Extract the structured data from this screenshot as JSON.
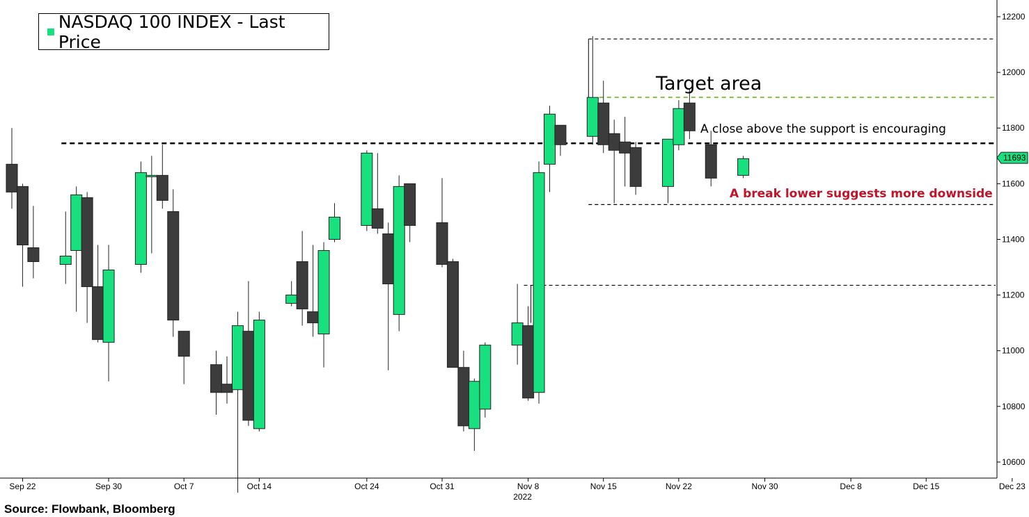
{
  "legend": {
    "label": "NASDAQ 100 INDEX - Last Price",
    "color": "#19e07e"
  },
  "source": "Source: Flowbank, Bloomberg",
  "annotations": {
    "target": "Target area",
    "close_above": "A close above the support is encouraging",
    "break_lower": "A break lower suggests more downside"
  },
  "colors": {
    "up": "#19e07e",
    "down": "#3c3c3c",
    "target_line": "#7dc242",
    "break_text": "#c0142a"
  },
  "chart_data": {
    "type": "candlestick",
    "title": "NASDAQ 100 INDEX - Last Price",
    "ylim": [
      10450,
      12240
    ],
    "yticks": [
      10600,
      10800,
      11000,
      11200,
      11400,
      11600,
      11800,
      12000,
      12200
    ],
    "x_range": [
      "Sep 21",
      "Dec 27"
    ],
    "xticks": [
      "Sep 22",
      "Sep 30",
      "Oct 7",
      "Oct 14",
      "Oct 24",
      "Oct 31",
      "Nov 8",
      "Nov 15",
      "Nov 22",
      "Nov 30",
      "Dec 8",
      "Dec 15",
      "Dec 23"
    ],
    "year_label": "2022",
    "last_price": 11693,
    "levels": [
      {
        "name": "upper",
        "value": 12120,
        "style": "dashed-black",
        "from": "Nov 14"
      },
      {
        "name": "target",
        "value": 11910,
        "style": "dashed-green",
        "from": "Nov 15"
      },
      {
        "name": "support",
        "value": 11745,
        "style": "dashed-black-bold",
        "from": "Sep 26"
      },
      {
        "name": "lower",
        "value": 11525,
        "style": "dashed-black",
        "from": "Nov 14"
      },
      {
        "name": "mid",
        "value": 11235,
        "style": "dashed-black",
        "from": "Nov 8"
      }
    ],
    "candles": [
      {
        "date": "Sep 21",
        "open": 11670,
        "high": 11800,
        "low": 11510,
        "close": 11570
      },
      {
        "date": "Sep 22",
        "open": 11590,
        "high": 11600,
        "low": 11230,
        "close": 11380
      },
      {
        "date": "Sep 23",
        "open": 11370,
        "high": 11520,
        "low": 11260,
        "close": 11320
      },
      {
        "date": "Sep 26",
        "open": 11310,
        "high": 11500,
        "low": 11240,
        "close": 11340
      },
      {
        "date": "Sep 27",
        "open": 11360,
        "high": 11590,
        "low": 11140,
        "close": 11560
      },
      {
        "date": "Sep 28",
        "open": 11550,
        "high": 11570,
        "low": 11100,
        "close": 11230
      },
      {
        "date": "Sep 29",
        "open": 11230,
        "high": 11380,
        "low": 11030,
        "close": 11040
      },
      {
        "date": "Sep 30",
        "open": 11030,
        "high": 11380,
        "low": 10890,
        "close": 11290
      },
      {
        "date": "Oct 3",
        "open": 11310,
        "high": 11680,
        "low": 11280,
        "close": 11640
      },
      {
        "date": "Oct 4",
        "open": 11630,
        "high": 11700,
        "low": 11350,
        "close": 11630
      },
      {
        "date": "Oct 5",
        "open": 11630,
        "high": 11740,
        "low": 11510,
        "close": 11540
      },
      {
        "date": "Oct 6",
        "open": 11500,
        "high": 11580,
        "low": 11050,
        "close": 11110
      },
      {
        "date": "Oct 7",
        "open": 11070,
        "high": 11070,
        "low": 10880,
        "close": 10980
      },
      {
        "date": "Oct 10",
        "open": 10950,
        "high": 11000,
        "low": 10770,
        "close": 10850
      },
      {
        "date": "Oct 11",
        "open": 10880,
        "high": 10980,
        "low": 10810,
        "close": 10850
      },
      {
        "date": "Oct 12",
        "open": 10860,
        "high": 11140,
        "low": 10490,
        "close": 11090
      },
      {
        "date": "Oct 13",
        "open": 11070,
        "high": 11250,
        "low": 10730,
        "close": 10750
      },
      {
        "date": "Oct 14",
        "open": 10720,
        "high": 11140,
        "low": 10710,
        "close": 11110
      },
      {
        "date": "Oct 17",
        "open": 11170,
        "high": 11250,
        "low": 11160,
        "close": 11200
      },
      {
        "date": "Oct 18",
        "open": 11320,
        "high": 11430,
        "low": 11090,
        "close": 11150
      },
      {
        "date": "Oct 19",
        "open": 11140,
        "high": 11380,
        "low": 11050,
        "close": 11100
      },
      {
        "date": "Oct 20",
        "open": 11060,
        "high": 11390,
        "low": 10940,
        "close": 11360
      },
      {
        "date": "Oct 21",
        "open": 11400,
        "high": 11530,
        "low": 11390,
        "close": 11480
      },
      {
        "date": "Oct 24",
        "open": 11450,
        "high": 11720,
        "low": 11430,
        "close": 11710
      },
      {
        "date": "Oct 25",
        "open": 11510,
        "high": 11710,
        "low": 11420,
        "close": 11440
      },
      {
        "date": "Oct 26",
        "open": 11420,
        "high": 11460,
        "low": 10930,
        "close": 11240
      },
      {
        "date": "Oct 27",
        "open": 11130,
        "high": 11630,
        "low": 11070,
        "close": 11590
      },
      {
        "date": "Oct 28",
        "open": 11600,
        "high": 11600,
        "low": 11390,
        "close": 11450
      },
      {
        "date": "Oct 31",
        "open": 11460,
        "high": 11620,
        "low": 11300,
        "close": 11310
      },
      {
        "date": "Nov 1",
        "open": 11320,
        "high": 11330,
        "low": 10950,
        "close": 10940
      },
      {
        "date": "Nov 2",
        "open": 10940,
        "high": 11000,
        "low": 10710,
        "close": 10730
      },
      {
        "date": "Nov 3",
        "open": 10720,
        "high": 10900,
        "low": 10640,
        "close": 10890
      },
      {
        "date": "Nov 4",
        "open": 10790,
        "high": 11030,
        "low": 10760,
        "close": 11020
      },
      {
        "date": "Nov 7",
        "open": 11020,
        "high": 11240,
        "low": 10950,
        "close": 11100
      },
      {
        "date": "Nov 8",
        "open": 11090,
        "high": 11160,
        "low": 10820,
        "close": 10830
      },
      {
        "date": "Nov 9",
        "open": 10850,
        "high": 11680,
        "low": 10810,
        "close": 11640
      },
      {
        "date": "Nov 10",
        "open": 11670,
        "high": 11880,
        "low": 11570,
        "close": 11850
      },
      {
        "date": "Nov 11",
        "open": 11810,
        "high": 11810,
        "low": 11700,
        "close": 11740
      },
      {
        "date": "Nov 14",
        "open": 11770,
        "high": 12130,
        "low": 11740,
        "close": 11910
      },
      {
        "date": "Nov 15",
        "open": 11890,
        "high": 11970,
        "low": 11710,
        "close": 11740
      },
      {
        "date": "Nov 16",
        "open": 11780,
        "high": 11830,
        "low": 11530,
        "close": 11720
      },
      {
        "date": "Nov 17",
        "open": 11750,
        "high": 11840,
        "low": 11590,
        "close": 11710
      },
      {
        "date": "Nov 18",
        "open": 11730,
        "high": 11750,
        "low": 11560,
        "close": 11590
      },
      {
        "date": "Nov 21",
        "open": 11590,
        "high": 11760,
        "low": 11530,
        "close": 11760
      },
      {
        "date": "Nov 22",
        "open": 11740,
        "high": 11900,
        "low": 11720,
        "close": 11870
      },
      {
        "date": "Nov 23",
        "open": 11890,
        "high": 11940,
        "low": 11760,
        "close": 11790
      },
      {
        "date": "Nov 25",
        "open": 11740,
        "high": 11790,
        "low": 11590,
        "close": 11620
      },
      {
        "date": "Nov 28",
        "open": 11630,
        "high": 11700,
        "low": 11620,
        "close": 11690
      }
    ]
  }
}
